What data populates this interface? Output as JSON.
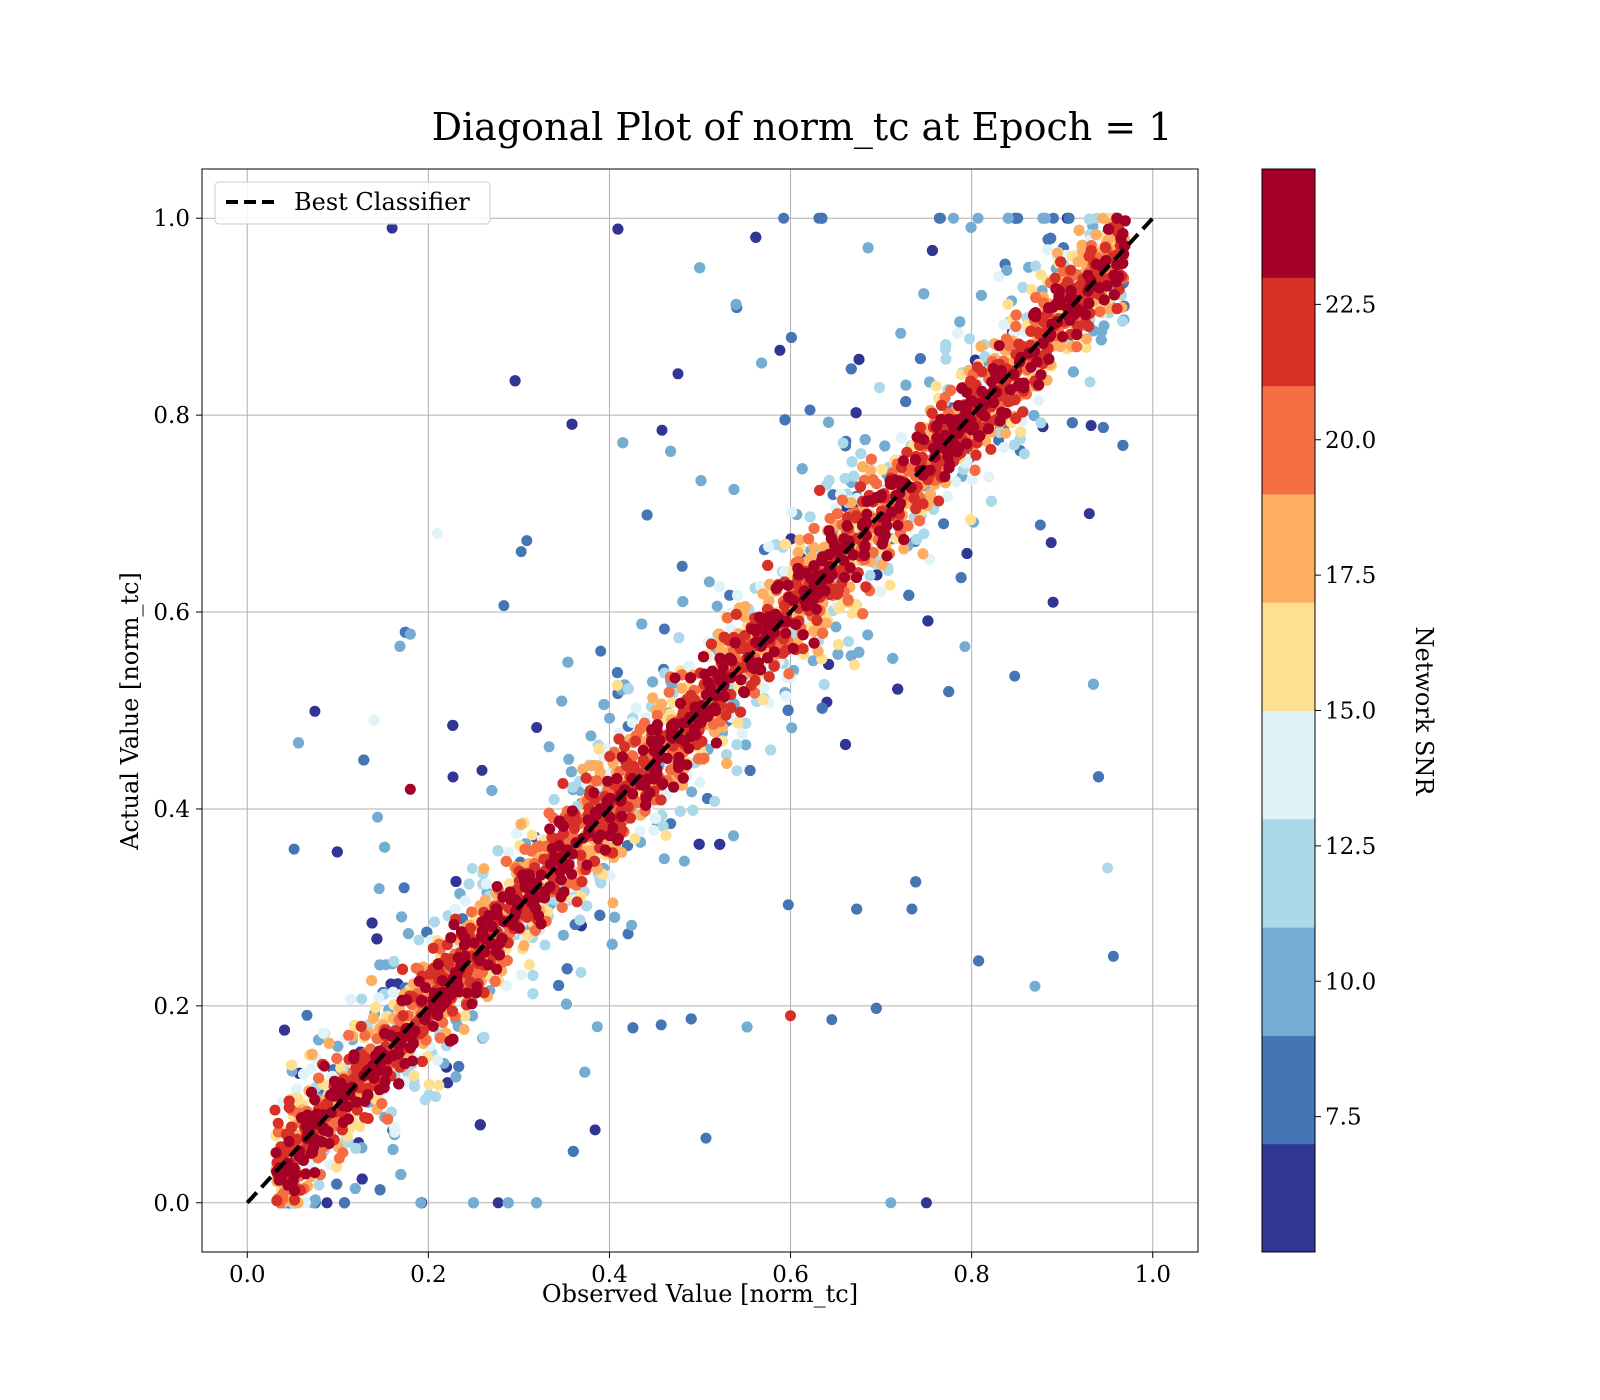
{
  "chart_data": {
    "type": "scatter",
    "title": "Diagonal Plot of norm_tc at Epoch = 1",
    "xlabel": "Observed Value [norm_tc]",
    "ylabel": "Actual Value [norm_tc]",
    "xlim": [
      -0.05,
      1.05
    ],
    "ylim": [
      -0.05,
      1.05
    ],
    "xticks": [
      "0.0",
      "0.2",
      "0.4",
      "0.6",
      "0.8",
      "1.0"
    ],
    "yticks": [
      "0.0",
      "0.2",
      "0.4",
      "0.6",
      "0.8",
      "1.0"
    ],
    "grid": true,
    "legend": {
      "placement": "top-left",
      "entries": [
        "Best Classifier"
      ]
    },
    "reference_line": {
      "name": "Best Classifier",
      "style": "dashed",
      "color": "#000000",
      "x": [
        0,
        1
      ],
      "y": [
        0,
        1
      ]
    },
    "colorbar": {
      "label": "Network SNR",
      "range": [
        5.0,
        25.0
      ],
      "levels": 10,
      "ticks": [
        "7.5",
        "10.0",
        "12.5",
        "15.0",
        "17.5",
        "20.0",
        "22.5"
      ],
      "tick_values": [
        7.5,
        10.0,
        12.5,
        15.0,
        17.5,
        20.0,
        22.5
      ],
      "colors": [
        "#313695",
        "#4575b4",
        "#74add1",
        "#abd9e9",
        "#e0f3f8",
        "#fee090",
        "#fdae61",
        "#f46d43",
        "#d73027",
        "#a50026"
      ]
    },
    "points_description_summary": {
      "high_snr_band": "points with SNR above 20 lie in a tight band around y = x",
      "low_snr_spread": "points with SNR below 10 are widely scattered away from the diagonal"
    },
    "sample_points": [
      {
        "x": 0.16,
        "y": 0.99,
        "snr": 6
      },
      {
        "x": 0.18,
        "y": 0.42,
        "snr": 24
      },
      {
        "x": 0.95,
        "y": 0.34,
        "snr": 12
      },
      {
        "x": 0.75,
        "y": 0.0,
        "snr": 6
      },
      {
        "x": 0.93,
        "y": 0.7,
        "snr": 6
      },
      {
        "x": 0.21,
        "y": 0.68,
        "snr": 13
      },
      {
        "x": 0.14,
        "y": 0.49,
        "snr": 14
      },
      {
        "x": 0.6,
        "y": 0.19,
        "snr": 22
      },
      {
        "x": 0.87,
        "y": 0.22,
        "snr": 9
      },
      {
        "x": 0.89,
        "y": 0.61,
        "snr": 6
      }
    ]
  }
}
